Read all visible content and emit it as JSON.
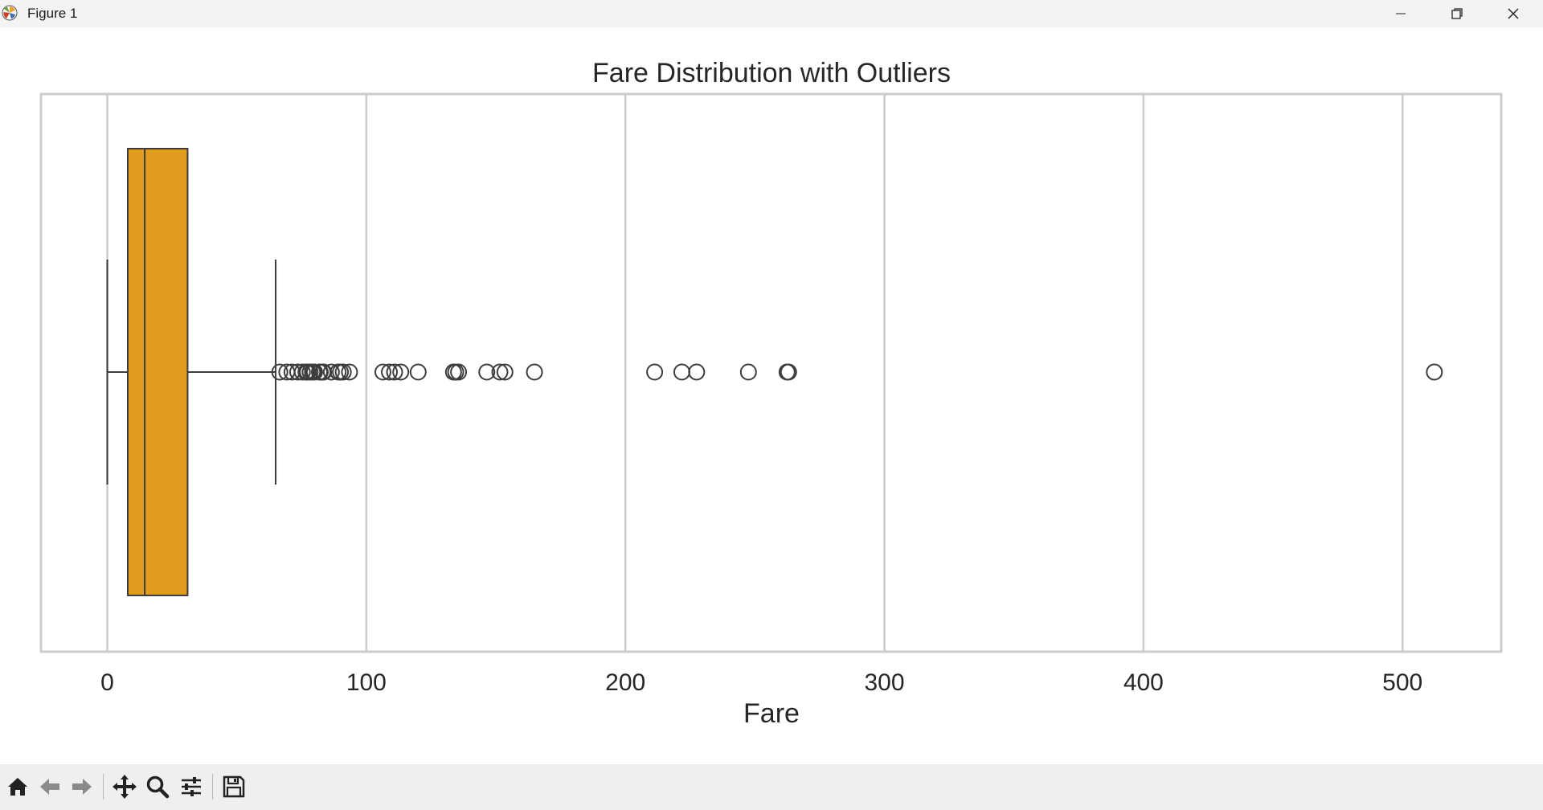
{
  "window": {
    "title": "Figure 1",
    "icons": [
      "matplotlib-icon",
      "minimize-icon",
      "restore-icon",
      "close-icon"
    ]
  },
  "toolbar": {
    "buttons": [
      "home-icon",
      "back-icon",
      "forward-icon",
      "pan-icon",
      "zoom-icon",
      "configure-subplots-icon",
      "save-icon"
    ]
  },
  "chart_data": {
    "type": "box",
    "title": "Fare Distribution with Outliers",
    "xlabel": "Fare",
    "ylabel": "",
    "xlim": [
      -25.6,
      538.1
    ],
    "xticks": [
      0,
      100,
      200,
      300,
      400,
      500
    ],
    "xtick_labels": [
      "0",
      "100",
      "200",
      "300",
      "400",
      "500"
    ],
    "grid": "vertical",
    "box": {
      "whisker_low": 0,
      "q1": 7.9,
      "median": 14.45,
      "q3": 31.0,
      "whisker_high": 65.0,
      "color": "#e39c1d",
      "edge_color": "#3d3d3d"
    },
    "outliers": [
      66.6,
      69.3,
      71.3,
      73.5,
      75.3,
      76.7,
      77.3,
      78.3,
      79.2,
      79.65,
      80.0,
      81.9,
      82.2,
      83.2,
      83.5,
      86.5,
      89.1,
      90.0,
      91.1,
      93.5,
      106.4,
      108.9,
      110.9,
      113.3,
      120.0,
      133.65,
      134.5,
      135.6,
      146.5,
      151.55,
      153.5,
      164.9,
      211.3,
      221.8,
      227.5,
      247.5,
      262.4,
      263.0,
      512.3
    ]
  }
}
